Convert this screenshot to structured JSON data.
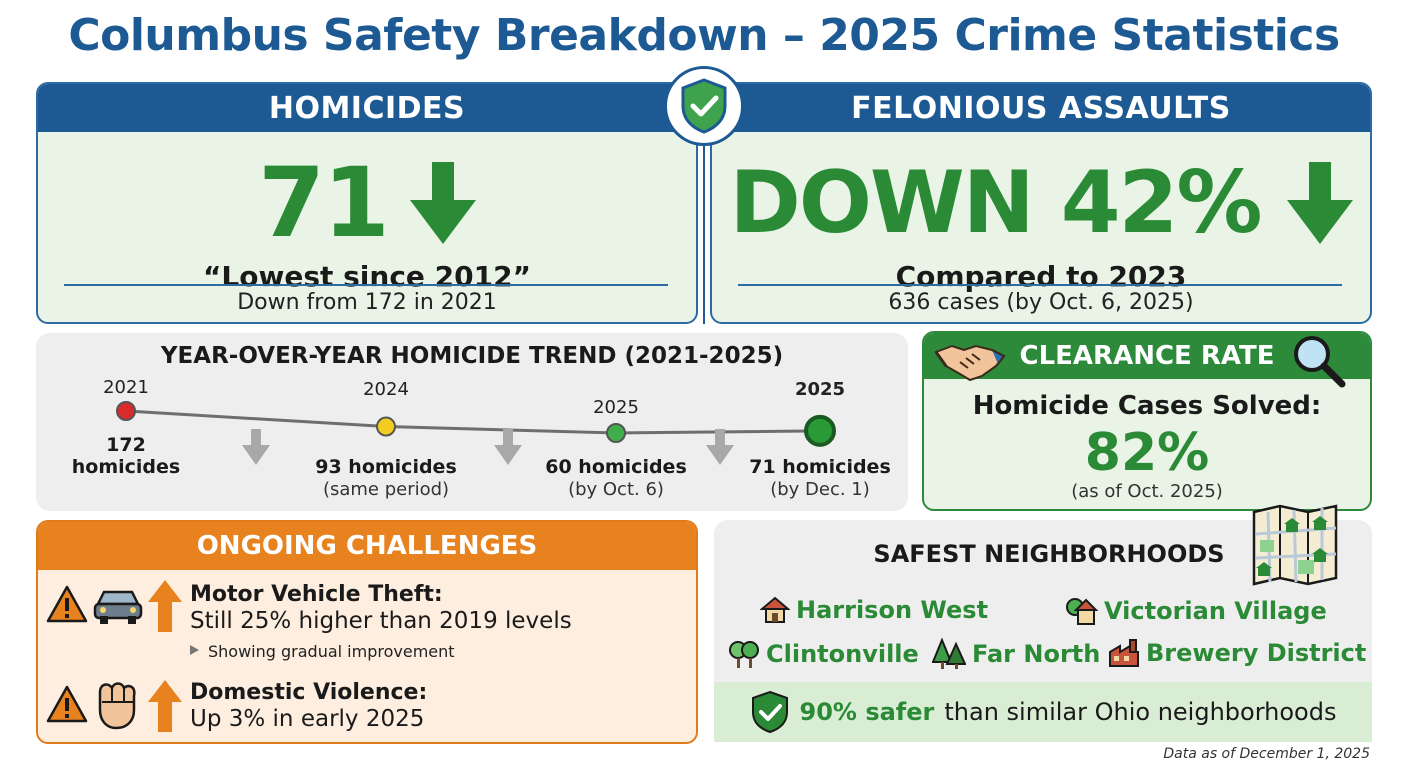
{
  "title": "Columbus Safety Breakdown – 2025 Crime Statistics",
  "homicides": {
    "header": "HOMICIDES",
    "number": "71",
    "quote": "“Lowest since 2012”",
    "detail": "Down from 172 in 2021"
  },
  "assaults": {
    "header": "FELONIOUS ASSAULTS",
    "headline": "DOWN 42%",
    "comparison": "Compared to 2023",
    "detail": "636 cases (by Oct. 6, 2025)"
  },
  "trend": {
    "title": "YEAR-OVER-YEAR HOMICIDE TREND (2021-2025)",
    "points": [
      {
        "year": "2021",
        "value_line1": "172",
        "value_line2": "homicides",
        "note": "",
        "count": 172,
        "color": "#d92b2b"
      },
      {
        "year": "2024",
        "value_line1": "93 homicides",
        "value_line2": "",
        "note": "(same period)",
        "count": 93,
        "color": "#f2cd1f"
      },
      {
        "year": "2025",
        "value_line1": "60 homicides",
        "value_line2": "",
        "note": "(by Oct. 6)",
        "count": 60,
        "color": "#3fae4a"
      },
      {
        "year": "2025",
        "value_line1": "71 homicides",
        "value_line2": "",
        "note": "(by Dec. 1)",
        "count": 71,
        "color": "#2a9a36"
      }
    ]
  },
  "clearance": {
    "header": "CLEARANCE RATE",
    "line1": "Homicide Cases Solved:",
    "percent": "82%",
    "note": "(as of Oct. 2025)"
  },
  "challenges": {
    "header": "ONGOING CHALLENGES",
    "items": [
      {
        "title": "Motor Vehicle Theft:",
        "text": "Still 25% higher than 2019 levels",
        "note": "Showing gradual improvement"
      },
      {
        "title": "Domestic Violence:",
        "text": "Up 3% in early 2025",
        "note": ""
      }
    ]
  },
  "neighborhoods": {
    "title": "SAFEST NEIGHBORHOODS",
    "items": [
      "Harrison West",
      "Victorian Village",
      "Clintonville",
      "Far North",
      "Brewery District"
    ],
    "footer_highlight": "90% safer",
    "footer_rest": "than similar Ohio neighborhoods"
  },
  "footnote": "Data as of December 1, 2025",
  "colors": {
    "blue": "#1d5a94",
    "green": "#2a8a36",
    "orange": "#e8821e"
  },
  "icons": [
    "shield-check-icon",
    "down-arrow-icon",
    "handshake-icon",
    "magnifier-icon",
    "warning-icon",
    "car-icon",
    "fist-icon",
    "up-arrow-icon",
    "map-icon",
    "house-icon",
    "tree-icon",
    "pine-icon",
    "factory-icon"
  ]
}
